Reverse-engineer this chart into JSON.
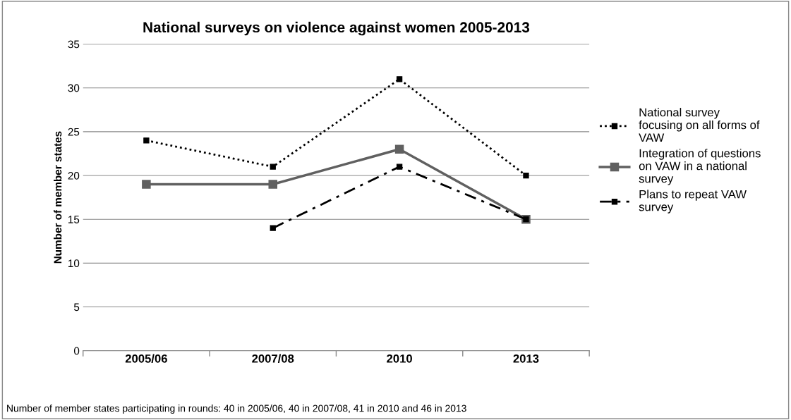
{
  "chart_data": {
    "type": "line",
    "title": "National surveys on violence against women 2005-2013",
    "ylabel": "Number of member states",
    "categories": [
      "2005/06",
      "2007/08",
      "2010",
      "2013"
    ],
    "series": [
      {
        "name": "National survey focusing on all forms of VAW",
        "color": "#000000",
        "line_style": "dotted",
        "values": [
          24,
          21,
          31,
          20
        ]
      },
      {
        "name": "Integration of questions on VAW in a national survey",
        "color": "#606060",
        "line_style": "solid",
        "values": [
          19,
          19,
          23,
          15
        ]
      },
      {
        "name": "Plans to repeat VAW survey",
        "color": "#000000",
        "line_style": "dashdot",
        "values": [
          null,
          14,
          21,
          15
        ]
      }
    ],
    "ylim": [
      0,
      35
    ],
    "yticks": [
      0,
      5,
      10,
      15,
      20,
      25,
      30,
      35
    ],
    "grid": "y",
    "legend": "right",
    "marker": "square",
    "annotations": [
      "Number of member states participating in rounds: 40 in 2005/06, 40 in 2007/08, 41 in 2010 and 46 in 2013"
    ]
  }
}
